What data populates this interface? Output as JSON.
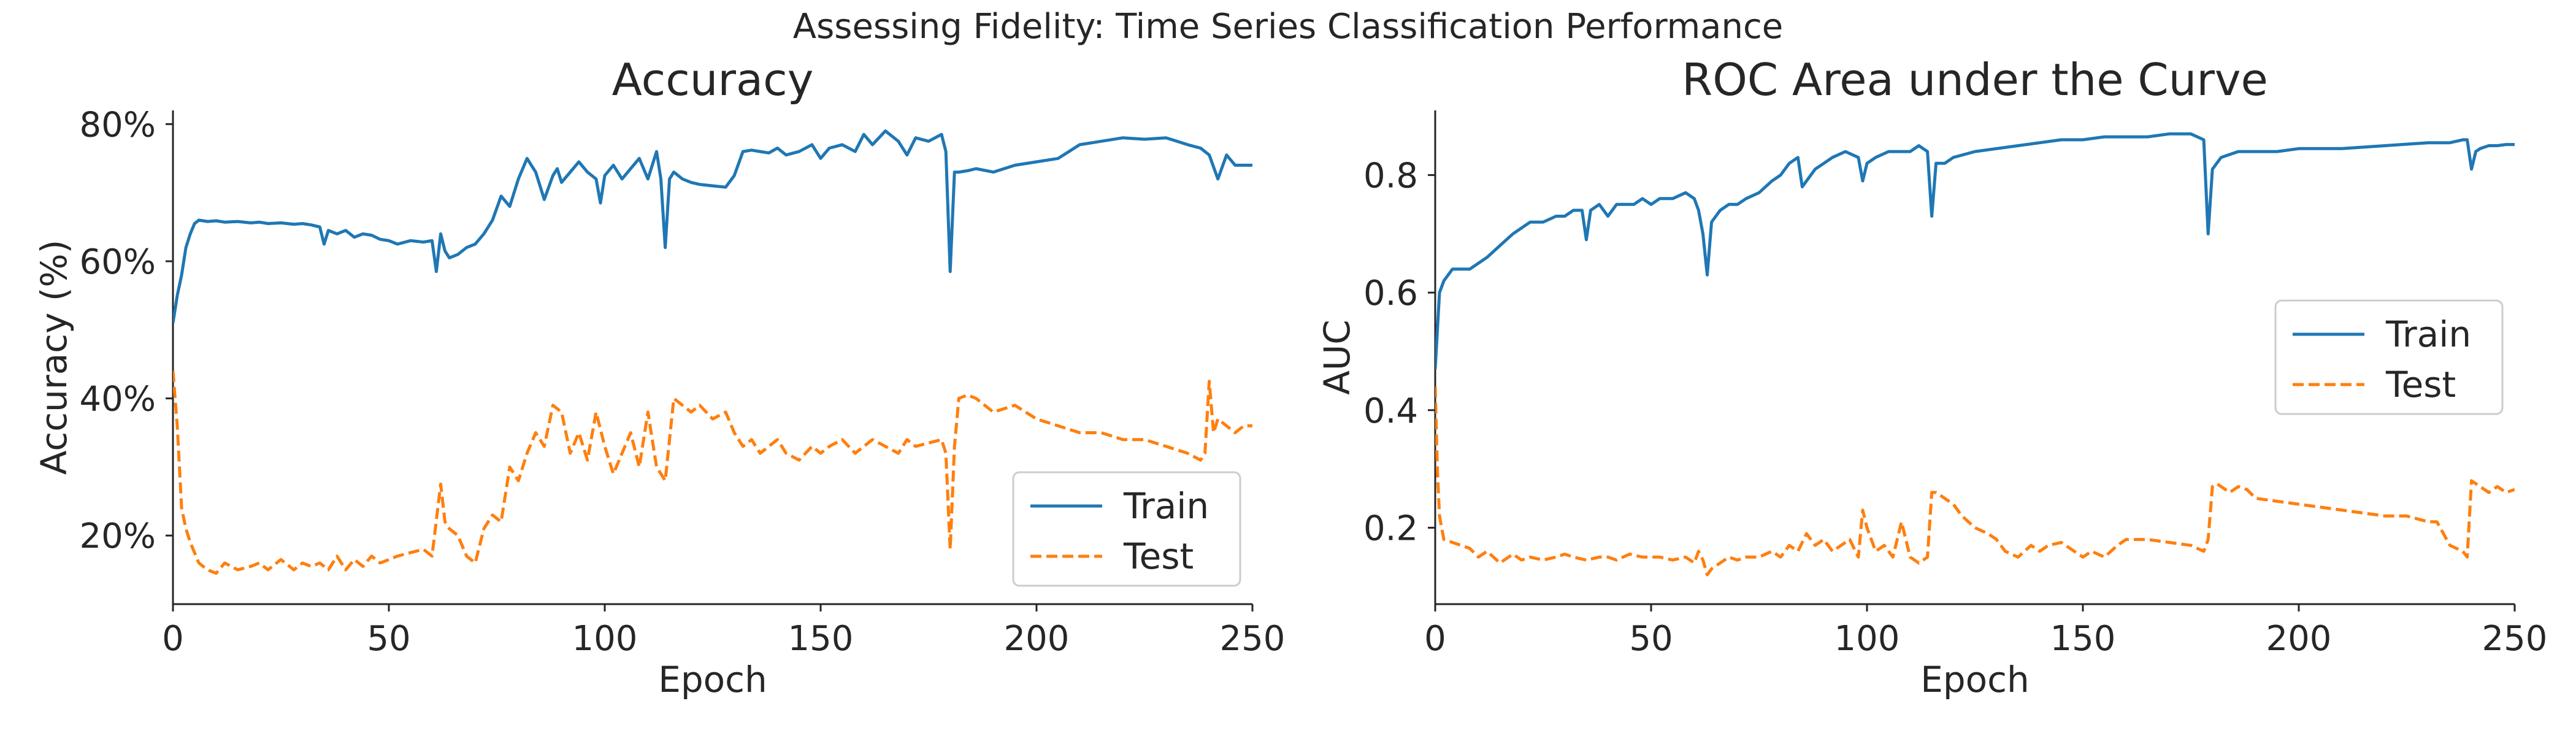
{
  "figure": {
    "title": "Assessing Fidelity: Time Series Classification Performance"
  },
  "colors": {
    "train": "#1f77b4",
    "test": "#ff7f0e",
    "text": "#262626",
    "legend_border": "#cccccc"
  },
  "chart_data": [
    {
      "type": "line",
      "title": "Accuracy",
      "xlabel": "Epoch",
      "ylabel": "Accuracy (%)",
      "xlim": [
        0,
        250
      ],
      "ylim": [
        10,
        82
      ],
      "x_ticks": [
        0,
        50,
        100,
        150,
        200,
        250
      ],
      "y_ticks": [
        20,
        40,
        60,
        80
      ],
      "y_tick_labels": [
        "20%",
        "40%",
        "60%",
        "80%"
      ],
      "grid": false,
      "legend": "lower-right",
      "series": [
        {
          "name": "Train",
          "style": "solid",
          "x": [
            0,
            1,
            2,
            3,
            4,
            5,
            6,
            8,
            10,
            12,
            15,
            18,
            20,
            22,
            25,
            28,
            30,
            32,
            34,
            35,
            36,
            38,
            40,
            42,
            44,
            46,
            48,
            50,
            52,
            55,
            58,
            60,
            61,
            62,
            63,
            64,
            66,
            68,
            70,
            72,
            74,
            76,
            78,
            80,
            82,
            84,
            86,
            88,
            89,
            90,
            92,
            94,
            96,
            98,
            99,
            100,
            102,
            104,
            106,
            108,
            110,
            112,
            113,
            114,
            115,
            116,
            118,
            120,
            122,
            125,
            128,
            130,
            132,
            134,
            136,
            138,
            140,
            142,
            145,
            148,
            150,
            152,
            155,
            158,
            160,
            162,
            165,
            168,
            170,
            172,
            175,
            178,
            179,
            180,
            181,
            182,
            184,
            186,
            190,
            195,
            200,
            205,
            210,
            215,
            220,
            225,
            230,
            235,
            238,
            240,
            242,
            244,
            246,
            248,
            250
          ],
          "values": [
            51,
            55,
            58,
            62,
            64,
            65.5,
            66,
            65.8,
            65.9,
            65.7,
            65.8,
            65.6,
            65.7,
            65.5,
            65.6,
            65.4,
            65.5,
            65.3,
            65.0,
            62.5,
            64.5,
            64.0,
            64.5,
            63.5,
            64.0,
            63.8,
            63.2,
            63.0,
            62.5,
            63.0,
            62.8,
            63.0,
            58.5,
            64.0,
            61.5,
            60.5,
            61.0,
            62.0,
            62.5,
            64.0,
            66.0,
            69.5,
            68.0,
            72.0,
            75.0,
            73.0,
            69.0,
            72.5,
            73.5,
            71.5,
            73.0,
            74.5,
            73.0,
            72.0,
            68.5,
            72.5,
            74.0,
            72.0,
            73.5,
            75.0,
            72.0,
            76.0,
            72.0,
            62.0,
            72.0,
            73.0,
            72.0,
            71.5,
            71.2,
            71.0,
            70.8,
            72.5,
            76.0,
            76.2,
            76.0,
            75.8,
            76.5,
            75.5,
            76.0,
            77.0,
            75.0,
            76.5,
            77.0,
            76.0,
            78.5,
            77.0,
            79.0,
            77.5,
            75.5,
            78.0,
            77.5,
            78.5,
            76.0,
            58.5,
            73.0,
            73.0,
            73.2,
            73.5,
            73.0,
            74.0,
            74.5,
            75.0,
            77.0,
            77.5,
            78.0,
            77.8,
            78.0,
            77.0,
            76.5,
            75.5,
            72.0,
            75.5,
            74.0,
            74.0,
            74.0
          ]
        },
        {
          "name": "Test",
          "style": "dashed",
          "x": [
            0,
            1,
            2,
            3,
            4,
            6,
            8,
            10,
            12,
            15,
            18,
            20,
            22,
            25,
            28,
            30,
            32,
            34,
            36,
            38,
            40,
            42,
            44,
            46,
            48,
            50,
            52,
            55,
            58,
            60,
            62,
            63,
            64,
            66,
            68,
            70,
            72,
            74,
            76,
            78,
            80,
            82,
            84,
            86,
            88,
            90,
            92,
            94,
            96,
            98,
            100,
            102,
            104,
            106,
            108,
            110,
            112,
            114,
            115,
            116,
            118,
            120,
            122,
            125,
            128,
            130,
            132,
            134,
            136,
            138,
            140,
            142,
            145,
            148,
            150,
            152,
            155,
            158,
            160,
            162,
            165,
            168,
            170,
            172,
            175,
            178,
            179,
            180,
            181,
            182,
            184,
            186,
            190,
            195,
            200,
            205,
            210,
            215,
            220,
            225,
            230,
            235,
            238,
            239,
            240,
            241,
            242,
            244,
            246,
            248,
            250
          ],
          "values": [
            44,
            36,
            24,
            21,
            19,
            16,
            15,
            14.5,
            16,
            15,
            15.5,
            16,
            15,
            16.5,
            15,
            16,
            15.5,
            16,
            15,
            17,
            15,
            16.5,
            15.5,
            17,
            16,
            16.5,
            17,
            17.5,
            18,
            17,
            27.5,
            22,
            21,
            20,
            17,
            16,
            21,
            23,
            22,
            30,
            28,
            32,
            35,
            33,
            39,
            38,
            32,
            35,
            31,
            38,
            33,
            29,
            32,
            35,
            30,
            38,
            30,
            28,
            34,
            40,
            39,
            38,
            39,
            37,
            38,
            35,
            33,
            34,
            32,
            33,
            34,
            32,
            31,
            33,
            32,
            33,
            34,
            32,
            33,
            34,
            33,
            32,
            34,
            33,
            33.5,
            34,
            32,
            18,
            33,
            40,
            40.5,
            40,
            38,
            39,
            37,
            36,
            35,
            35,
            34,
            34,
            33,
            32,
            31,
            32,
            42.5,
            35,
            37,
            36,
            35,
            36,
            36
          ]
        }
      ]
    },
    {
      "type": "line",
      "title": "ROC Area under the Curve",
      "xlabel": "Epoch",
      "ylabel": "AUC",
      "xlim": [
        0,
        250
      ],
      "ylim": [
        0.07,
        0.91
      ],
      "x_ticks": [
        0,
        50,
        100,
        150,
        200,
        250
      ],
      "y_ticks": [
        0.2,
        0.4,
        0.6,
        0.8
      ],
      "y_tick_labels": [
        "0.2",
        "0.4",
        "0.6",
        "0.8"
      ],
      "grid": false,
      "legend": "center-right",
      "series": [
        {
          "name": "Train",
          "style": "solid",
          "x": [
            0,
            1,
            2,
            3,
            4,
            6,
            8,
            10,
            12,
            15,
            18,
            20,
            22,
            25,
            28,
            30,
            32,
            34,
            35,
            36,
            38,
            40,
            42,
            44,
            46,
            48,
            50,
            52,
            55,
            58,
            60,
            61,
            62,
            63,
            64,
            66,
            68,
            70,
            72,
            75,
            78,
            80,
            82,
            84,
            85,
            86,
            88,
            90,
            92,
            95,
            98,
            99,
            100,
            102,
            105,
            108,
            110,
            112,
            114,
            115,
            116,
            118,
            120,
            125,
            130,
            135,
            140,
            145,
            150,
            155,
            160,
            165,
            170,
            175,
            178,
            179,
            180,
            181,
            182,
            184,
            186,
            190,
            195,
            200,
            210,
            220,
            230,
            235,
            238,
            239,
            240,
            241,
            242,
            244,
            246,
            248,
            250
          ],
          "values": [
            0.47,
            0.6,
            0.62,
            0.63,
            0.64,
            0.64,
            0.64,
            0.65,
            0.66,
            0.68,
            0.7,
            0.71,
            0.72,
            0.72,
            0.73,
            0.73,
            0.74,
            0.74,
            0.69,
            0.74,
            0.75,
            0.73,
            0.75,
            0.75,
            0.75,
            0.76,
            0.75,
            0.76,
            0.76,
            0.77,
            0.76,
            0.74,
            0.7,
            0.63,
            0.72,
            0.74,
            0.75,
            0.75,
            0.76,
            0.77,
            0.79,
            0.8,
            0.82,
            0.83,
            0.78,
            0.79,
            0.81,
            0.82,
            0.83,
            0.84,
            0.83,
            0.79,
            0.82,
            0.83,
            0.84,
            0.84,
            0.84,
            0.85,
            0.84,
            0.73,
            0.82,
            0.82,
            0.83,
            0.84,
            0.845,
            0.85,
            0.855,
            0.86,
            0.86,
            0.865,
            0.865,
            0.865,
            0.87,
            0.87,
            0.86,
            0.7,
            0.81,
            0.82,
            0.83,
            0.835,
            0.84,
            0.84,
            0.84,
            0.845,
            0.845,
            0.85,
            0.855,
            0.855,
            0.86,
            0.86,
            0.81,
            0.84,
            0.845,
            0.85,
            0.85,
            0.852,
            0.852
          ]
        },
        {
          "name": "Test",
          "style": "dashed",
          "x": [
            0,
            0.5,
            1,
            2,
            4,
            6,
            8,
            10,
            12,
            15,
            18,
            20,
            22,
            25,
            28,
            30,
            32,
            35,
            38,
            40,
            42,
            45,
            48,
            50,
            52,
            55,
            58,
            60,
            61,
            62,
            63,
            64,
            66,
            68,
            70,
            72,
            75,
            78,
            80,
            82,
            84,
            86,
            88,
            90,
            92,
            94,
            96,
            98,
            99,
            100,
            102,
            104,
            106,
            108,
            110,
            112,
            114,
            115,
            116,
            118,
            120,
            122,
            125,
            128,
            130,
            132,
            135,
            138,
            140,
            142,
            145,
            148,
            150,
            152,
            155,
            158,
            160,
            162,
            165,
            170,
            175,
            178,
            179,
            180,
            181,
            182,
            184,
            186,
            188,
            190,
            195,
            200,
            205,
            210,
            215,
            220,
            225,
            230,
            232,
            235,
            238,
            239,
            240,
            242,
            244,
            246,
            248,
            250
          ],
          "values": [
            0.44,
            0.3,
            0.22,
            0.18,
            0.175,
            0.17,
            0.165,
            0.15,
            0.16,
            0.14,
            0.155,
            0.145,
            0.15,
            0.145,
            0.15,
            0.155,
            0.15,
            0.145,
            0.15,
            0.15,
            0.145,
            0.155,
            0.15,
            0.15,
            0.15,
            0.145,
            0.15,
            0.14,
            0.16,
            0.145,
            0.12,
            0.13,
            0.14,
            0.15,
            0.145,
            0.15,
            0.15,
            0.16,
            0.15,
            0.17,
            0.16,
            0.19,
            0.17,
            0.18,
            0.16,
            0.17,
            0.18,
            0.15,
            0.23,
            0.2,
            0.16,
            0.17,
            0.15,
            0.21,
            0.15,
            0.14,
            0.15,
            0.26,
            0.26,
            0.25,
            0.24,
            0.22,
            0.2,
            0.19,
            0.18,
            0.16,
            0.15,
            0.17,
            0.16,
            0.17,
            0.175,
            0.16,
            0.15,
            0.16,
            0.15,
            0.17,
            0.18,
            0.18,
            0.18,
            0.175,
            0.17,
            0.16,
            0.18,
            0.27,
            0.275,
            0.27,
            0.26,
            0.27,
            0.265,
            0.25,
            0.245,
            0.24,
            0.235,
            0.23,
            0.225,
            0.22,
            0.22,
            0.21,
            0.21,
            0.17,
            0.16,
            0.15,
            0.28,
            0.27,
            0.26,
            0.27,
            0.26,
            0.265
          ]
        }
      ]
    }
  ]
}
